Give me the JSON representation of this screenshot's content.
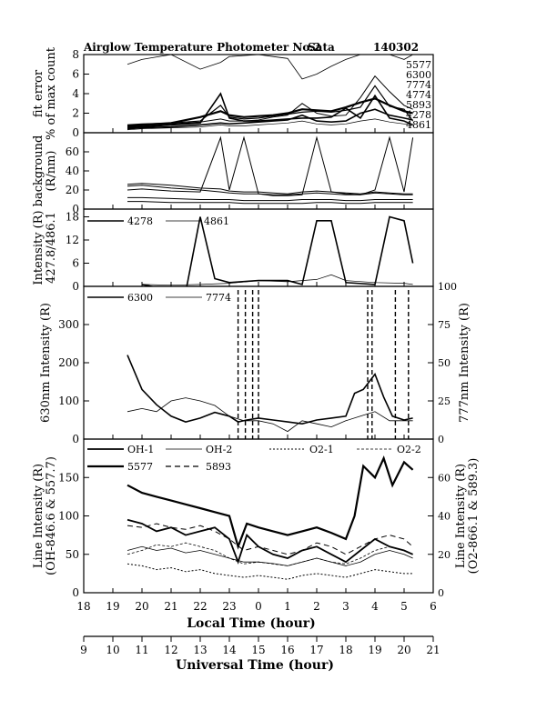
{
  "title": "Airglow Temperature Photometer No.2",
  "site": "Sata",
  "date_code": "140302",
  "chart_data": [
    {
      "type": "line",
      "panel": "fit-error",
      "ylabel_lines": [
        "fit error",
        "% of max count"
      ],
      "ylim": [
        0,
        8
      ],
      "yticks": [
        0,
        2,
        4,
        6,
        8
      ],
      "x_axis": "local_time_hour_continuous",
      "series": [
        {
          "name": "5577",
          "x": [
            19.5,
            20,
            21,
            22,
            22.7,
            23,
            23.5,
            24,
            24.5,
            25,
            25.5,
            26,
            26.5,
            27,
            27.5,
            28,
            28.5,
            29,
            29.3
          ],
          "values": [
            0.7,
            0.8,
            1.0,
            1.6,
            2.2,
            1.8,
            1.6,
            1.7,
            1.8,
            2.0,
            2.4,
            2.3,
            2.2,
            2.6,
            3.1,
            3.5,
            2.8,
            2.2,
            2.0
          ]
        },
        {
          "name": "6300",
          "x": [
            19.5,
            20,
            21,
            22,
            22.7,
            23,
            23.5,
            24,
            24.5,
            25,
            25.5,
            26,
            26.5,
            27,
            27.5,
            28,
            28.5,
            29,
            29.3
          ],
          "values": [
            0.5,
            0.6,
            0.8,
            1.0,
            4.0,
            1.5,
            1.2,
            1.2,
            1.3,
            1.4,
            1.5,
            1.5,
            1.6,
            2.5,
            1.5,
            3.8,
            1.5,
            1.2,
            0.8
          ]
        },
        {
          "name": "7774",
          "x": [
            19.5,
            20,
            21,
            22,
            22.7,
            23,
            23.5,
            24,
            24.5,
            25,
            25.5,
            26,
            26.5,
            27,
            27.5,
            28,
            28.5,
            29,
            29.3
          ],
          "values": [
            7.0,
            7.5,
            8.0,
            6.5,
            7.2,
            7.8,
            7.9,
            8.0,
            7.8,
            7.6,
            5.5,
            6.0,
            6.8,
            7.5,
            8.0,
            8.0,
            8.0,
            7.5,
            8.0
          ]
        },
        {
          "name": "4774",
          "x": [
            19.5,
            20,
            21,
            22,
            22.7,
            23,
            23.5,
            24,
            24.5,
            25,
            25.5,
            26,
            26.5,
            27,
            27.5,
            28,
            28.5,
            29,
            29.3
          ],
          "values": [
            0.8,
            0.9,
            1.0,
            1.2,
            2.8,
            1.6,
            1.4,
            1.5,
            1.7,
            1.9,
            2.1,
            2.2,
            2.1,
            2.3,
            2.6,
            4.8,
            2.7,
            2.4,
            1.2
          ]
        },
        {
          "name": "5893",
          "x": [
            19.5,
            20,
            21,
            22,
            22.7,
            23,
            23.5,
            24,
            24.5,
            25,
            25.5,
            26,
            26.5,
            27,
            27.5,
            28,
            28.5,
            29,
            29.3
          ],
          "values": [
            0.6,
            0.7,
            0.9,
            1.1,
            1.4,
            1.2,
            1.2,
            1.3,
            1.6,
            1.8,
            3.0,
            2.0,
            1.7,
            1.8,
            3.6,
            5.8,
            4.2,
            2.8,
            2.4
          ]
        },
        {
          "name": "4278",
          "x": [
            19.5,
            20,
            21,
            22,
            22.7,
            23,
            23.5,
            24,
            24.5,
            25,
            25.5,
            26,
            26.5,
            27,
            27.5,
            28,
            28.5,
            29,
            29.3
          ],
          "values": [
            0.4,
            0.5,
            0.6,
            0.8,
            1.0,
            0.9,
            1.0,
            1.1,
            1.2,
            1.3,
            1.8,
            1.2,
            1.1,
            1.2,
            2.0,
            2.4,
            1.8,
            1.5,
            1.3
          ]
        },
        {
          "name": "4861",
          "x": [
            19.5,
            20,
            21,
            22,
            22.7,
            23,
            23.5,
            24,
            24.5,
            25,
            25.5,
            26,
            26.5,
            27,
            27.5,
            28,
            28.5,
            29,
            29.3
          ],
          "values": [
            0.3,
            0.4,
            0.5,
            0.6,
            0.8,
            0.7,
            0.7,
            0.8,
            0.9,
            1.0,
            1.2,
            0.9,
            0.8,
            0.9,
            1.2,
            1.4,
            1.1,
            0.9,
            0.8
          ]
        }
      ]
    },
    {
      "type": "line",
      "panel": "background",
      "ylabel_lines": [
        "background",
        "(R/nm)"
      ],
      "ylim": [
        0,
        80
      ],
      "yticks": [
        0,
        20,
        40,
        60
      ],
      "x_axis": "local_time_hour_continuous",
      "series": [
        {
          "x": [
            19.5,
            20,
            21,
            22,
            22.7,
            23,
            23.5,
            24,
            24.5,
            25,
            25.5,
            26,
            26.5,
            27,
            27.5,
            28,
            28.5,
            29,
            29.3
          ],
          "values": [
            26,
            27,
            25,
            22,
            21,
            19,
            18,
            18,
            17,
            16,
            18,
            19,
            18,
            17,
            16,
            18,
            17,
            16,
            16
          ]
        },
        {
          "x": [
            19.5,
            20,
            21,
            22,
            22.7,
            23,
            23.5,
            24,
            24.5,
            25,
            25.5,
            26,
            26.5,
            27,
            27.5,
            28,
            28.5,
            29,
            29.3
          ],
          "values": [
            24,
            25,
            22,
            20,
            18,
            17,
            16,
            16,
            15,
            15,
            16,
            17,
            16,
            15,
            15,
            17,
            16,
            15,
            15
          ]
        },
        {
          "x": [
            19.5,
            20,
            21,
            22,
            22.7,
            23,
            23.5,
            24,
            24.5,
            25,
            25.5,
            26,
            26.5,
            27,
            27.5,
            28,
            28.5,
            29,
            29.3
          ],
          "values": [
            20,
            21,
            19,
            18,
            75,
            20,
            75,
            16,
            14,
            14,
            15,
            75,
            18,
            16,
            15,
            20,
            75,
            18,
            75
          ]
        },
        {
          "x": [
            19.5,
            20,
            21,
            22,
            22.7,
            23,
            23.5,
            24,
            24.5,
            25,
            25.5,
            26,
            26.5,
            27,
            27.5,
            28,
            28.5,
            29,
            29.3
          ],
          "values": [
            12,
            12,
            11,
            10,
            10,
            10,
            9,
            9,
            9,
            9,
            10,
            10,
            10,
            9,
            9,
            10,
            10,
            10,
            10
          ]
        },
        {
          "x": [
            19.5,
            20,
            21,
            22,
            22.7,
            23,
            23.5,
            24,
            24.5,
            25,
            25.5,
            26,
            26.5,
            27,
            27.5,
            28,
            28.5,
            29,
            29.3
          ],
          "values": [
            8,
            8,
            7,
            7,
            7,
            7,
            6,
            6,
            6,
            6,
            6,
            7,
            7,
            6,
            6,
            7,
            7,
            7,
            7
          ]
        }
      ]
    },
    {
      "type": "line",
      "panel": "blue-intensity",
      "ylabel_lines": [
        "Intensity (R)",
        "427.8/486.1"
      ],
      "ylim": [
        0,
        20
      ],
      "yticks": [
        0,
        6,
        12,
        18
      ],
      "x_axis": "local_time_hour_continuous",
      "series": [
        {
          "name": "4278",
          "x": [
            20,
            21,
            21.5,
            22,
            22.5,
            23,
            24,
            25,
            25.5,
            26,
            26.5,
            27,
            28,
            28.5,
            29,
            29.3
          ],
          "values": [
            0.5,
            -1,
            -1.5,
            18,
            2,
            1,
            1.5,
            1.5,
            0.5,
            17,
            17,
            1,
            0.5,
            18,
            17,
            6
          ]
        },
        {
          "name": "4861",
          "x": [
            20,
            21,
            22,
            23,
            24,
            25,
            26,
            26.5,
            27,
            28,
            29,
            29.3
          ],
          "values": [
            0.5,
            0.3,
            0.5,
            0.8,
            1.5,
            1.2,
            1.8,
            3,
            1.5,
            1.0,
            0.8,
            0.5
          ]
        }
      ]
    },
    {
      "type": "line",
      "panel": "630nm-777nm",
      "ylabel_left": "630nm Intensity (R)",
      "ylabel_right": "777nm Intensity (R)",
      "ylim_left": [
        0,
        400
      ],
      "yticks_left": [
        0,
        100,
        200,
        300
      ],
      "ylim_right": [
        0,
        100
      ],
      "yticks_right": [
        0,
        25,
        50,
        75,
        100
      ],
      "x_axis": "local_time_hour_continuous",
      "series": [
        {
          "name": "6300",
          "axis": "left",
          "x": [
            19.5,
            20,
            20.5,
            21,
            21.5,
            22,
            22.5,
            23,
            23.3,
            23.6,
            24,
            24.5,
            25,
            25.5,
            26,
            26.5,
            27,
            27.3,
            27.6,
            28,
            28.3,
            28.6,
            29,
            29.3
          ],
          "values": [
            220,
            130,
            90,
            60,
            45,
            55,
            70,
            60,
            45,
            50,
            55,
            50,
            45,
            40,
            50,
            55,
            60,
            120,
            130,
            170,
            110,
            60,
            50,
            55
          ]
        },
        {
          "name": "7774",
          "axis": "right",
          "x": [
            19.5,
            20,
            20.5,
            21,
            21.5,
            22,
            22.5,
            23,
            23.5,
            24,
            24.5,
            25,
            25.5,
            26,
            26.5,
            27,
            27.5,
            28,
            28.5,
            29,
            29.3
          ],
          "values": [
            18,
            20,
            18,
            25,
            27,
            25,
            22,
            15,
            12,
            12,
            10,
            5,
            12,
            10,
            8,
            12,
            15,
            18,
            12,
            12,
            12
          ]
        },
        {
          "name": "spikes",
          "axis": "left",
          "style": "dashed",
          "x_vertical": [
            23.3,
            23.55,
            23.8,
            24.0,
            27.75,
            27.9,
            28.7,
            29.15
          ]
        }
      ]
    },
    {
      "type": "line",
      "panel": "line-intensity",
      "ylabel_left_lines": [
        "Line Intensity (R)",
        "(OH-846.6 & 557.7)"
      ],
      "ylabel_right_lines": [
        "Line Intensity (R)",
        "(O2-866.1 & 589.3)"
      ],
      "ylim_left": [
        0,
        200
      ],
      "yticks_left": [
        0,
        50,
        100,
        150
      ],
      "ylim_right": [
        0,
        80
      ],
      "yticks_right": [
        0,
        20,
        40,
        60
      ],
      "x_axis": "local_time_hour_continuous",
      "series": [
        {
          "name": "OH-1",
          "axis": "left",
          "x": [
            19.5,
            20,
            20.5,
            21,
            21.5,
            22,
            22.5,
            23,
            23.3,
            23.6,
            24,
            24.5,
            25,
            25.5,
            26,
            26.5,
            27,
            27.5,
            28,
            28.5,
            29,
            29.3
          ],
          "values": [
            95,
            90,
            80,
            85,
            75,
            80,
            85,
            70,
            40,
            75,
            60,
            50,
            45,
            55,
            60,
            50,
            40,
            55,
            70,
            60,
            55,
            50
          ]
        },
        {
          "name": "OH-2",
          "axis": "left",
          "x": [
            19.5,
            20,
            20.5,
            21,
            21.5,
            22,
            22.5,
            23,
            23.5,
            24,
            24.5,
            25,
            25.5,
            26,
            26.5,
            27,
            27.5,
            28,
            28.5,
            29,
            29.3
          ],
          "values": [
            55,
            60,
            55,
            58,
            52,
            55,
            50,
            45,
            40,
            40,
            38,
            35,
            40,
            45,
            40,
            35,
            40,
            50,
            55,
            50,
            45
          ]
        },
        {
          "name": "O2-1",
          "axis": "right",
          "x": [
            19.5,
            20,
            20.5,
            21,
            21.5,
            22,
            22.5,
            23,
            23.5,
            24,
            24.5,
            25,
            25.5,
            26,
            26.5,
            27,
            27.5,
            28,
            28.5,
            29,
            29.3
          ],
          "values": [
            15,
            14,
            12,
            13,
            11,
            12,
            10,
            9,
            8,
            9,
            8,
            7,
            9,
            10,
            9,
            8,
            10,
            12,
            11,
            10,
            10
          ]
        },
        {
          "name": "O2-2",
          "axis": "right",
          "x": [
            19.5,
            20,
            20.5,
            21,
            21.5,
            22,
            22.5,
            23,
            23.5,
            24,
            24.5,
            25,
            25.5,
            26,
            26.5,
            27,
            27.5,
            28,
            28.5,
            29,
            29.3
          ],
          "values": [
            20,
            22,
            25,
            24,
            26,
            24,
            22,
            18,
            15,
            16,
            15,
            14,
            16,
            18,
            16,
            15,
            18,
            22,
            24,
            22,
            20
          ]
        },
        {
          "name": "5577",
          "axis": "left",
          "x": [
            19.5,
            20,
            20.5,
            21,
            21.5,
            22,
            22.5,
            23,
            23.3,
            23.6,
            24,
            24.5,
            25,
            25.5,
            26,
            26.5,
            27,
            27.3,
            27.6,
            28,
            28.3,
            28.6,
            29,
            29.3
          ],
          "values": [
            140,
            130,
            125,
            120,
            115,
            110,
            105,
            100,
            60,
            90,
            85,
            80,
            75,
            80,
            85,
            78,
            70,
            100,
            165,
            150,
            175,
            140,
            170,
            160
          ]
        },
        {
          "name": "5893",
          "axis": "right",
          "x": [
            19.5,
            20,
            20.5,
            21,
            21.5,
            22,
            22.5,
            23,
            23.5,
            24,
            24.5,
            25,
            25.5,
            26,
            26.5,
            27,
            27.5,
            28,
            28.5,
            29,
            29.3
          ],
          "values": [
            35,
            34,
            36,
            34,
            33,
            35,
            32,
            28,
            22,
            24,
            22,
            20,
            22,
            26,
            24,
            20,
            24,
            28,
            30,
            28,
            24
          ]
        }
      ]
    }
  ],
  "x_axes": {
    "local": {
      "label": "Local Time (hour)",
      "ticks": [
        "18",
        "19",
        "20",
        "21",
        "22",
        "23",
        "0",
        "1",
        "2",
        "3",
        "4",
        "5",
        "6"
      ],
      "range": [
        18,
        30
      ]
    },
    "universal": {
      "label": "Universal Time (hour)",
      "ticks": [
        "9",
        "10",
        "11",
        "12",
        "13",
        "14",
        "15",
        "16",
        "17",
        "18",
        "19",
        "20",
        "21"
      ],
      "range": [
        9,
        21
      ]
    }
  }
}
